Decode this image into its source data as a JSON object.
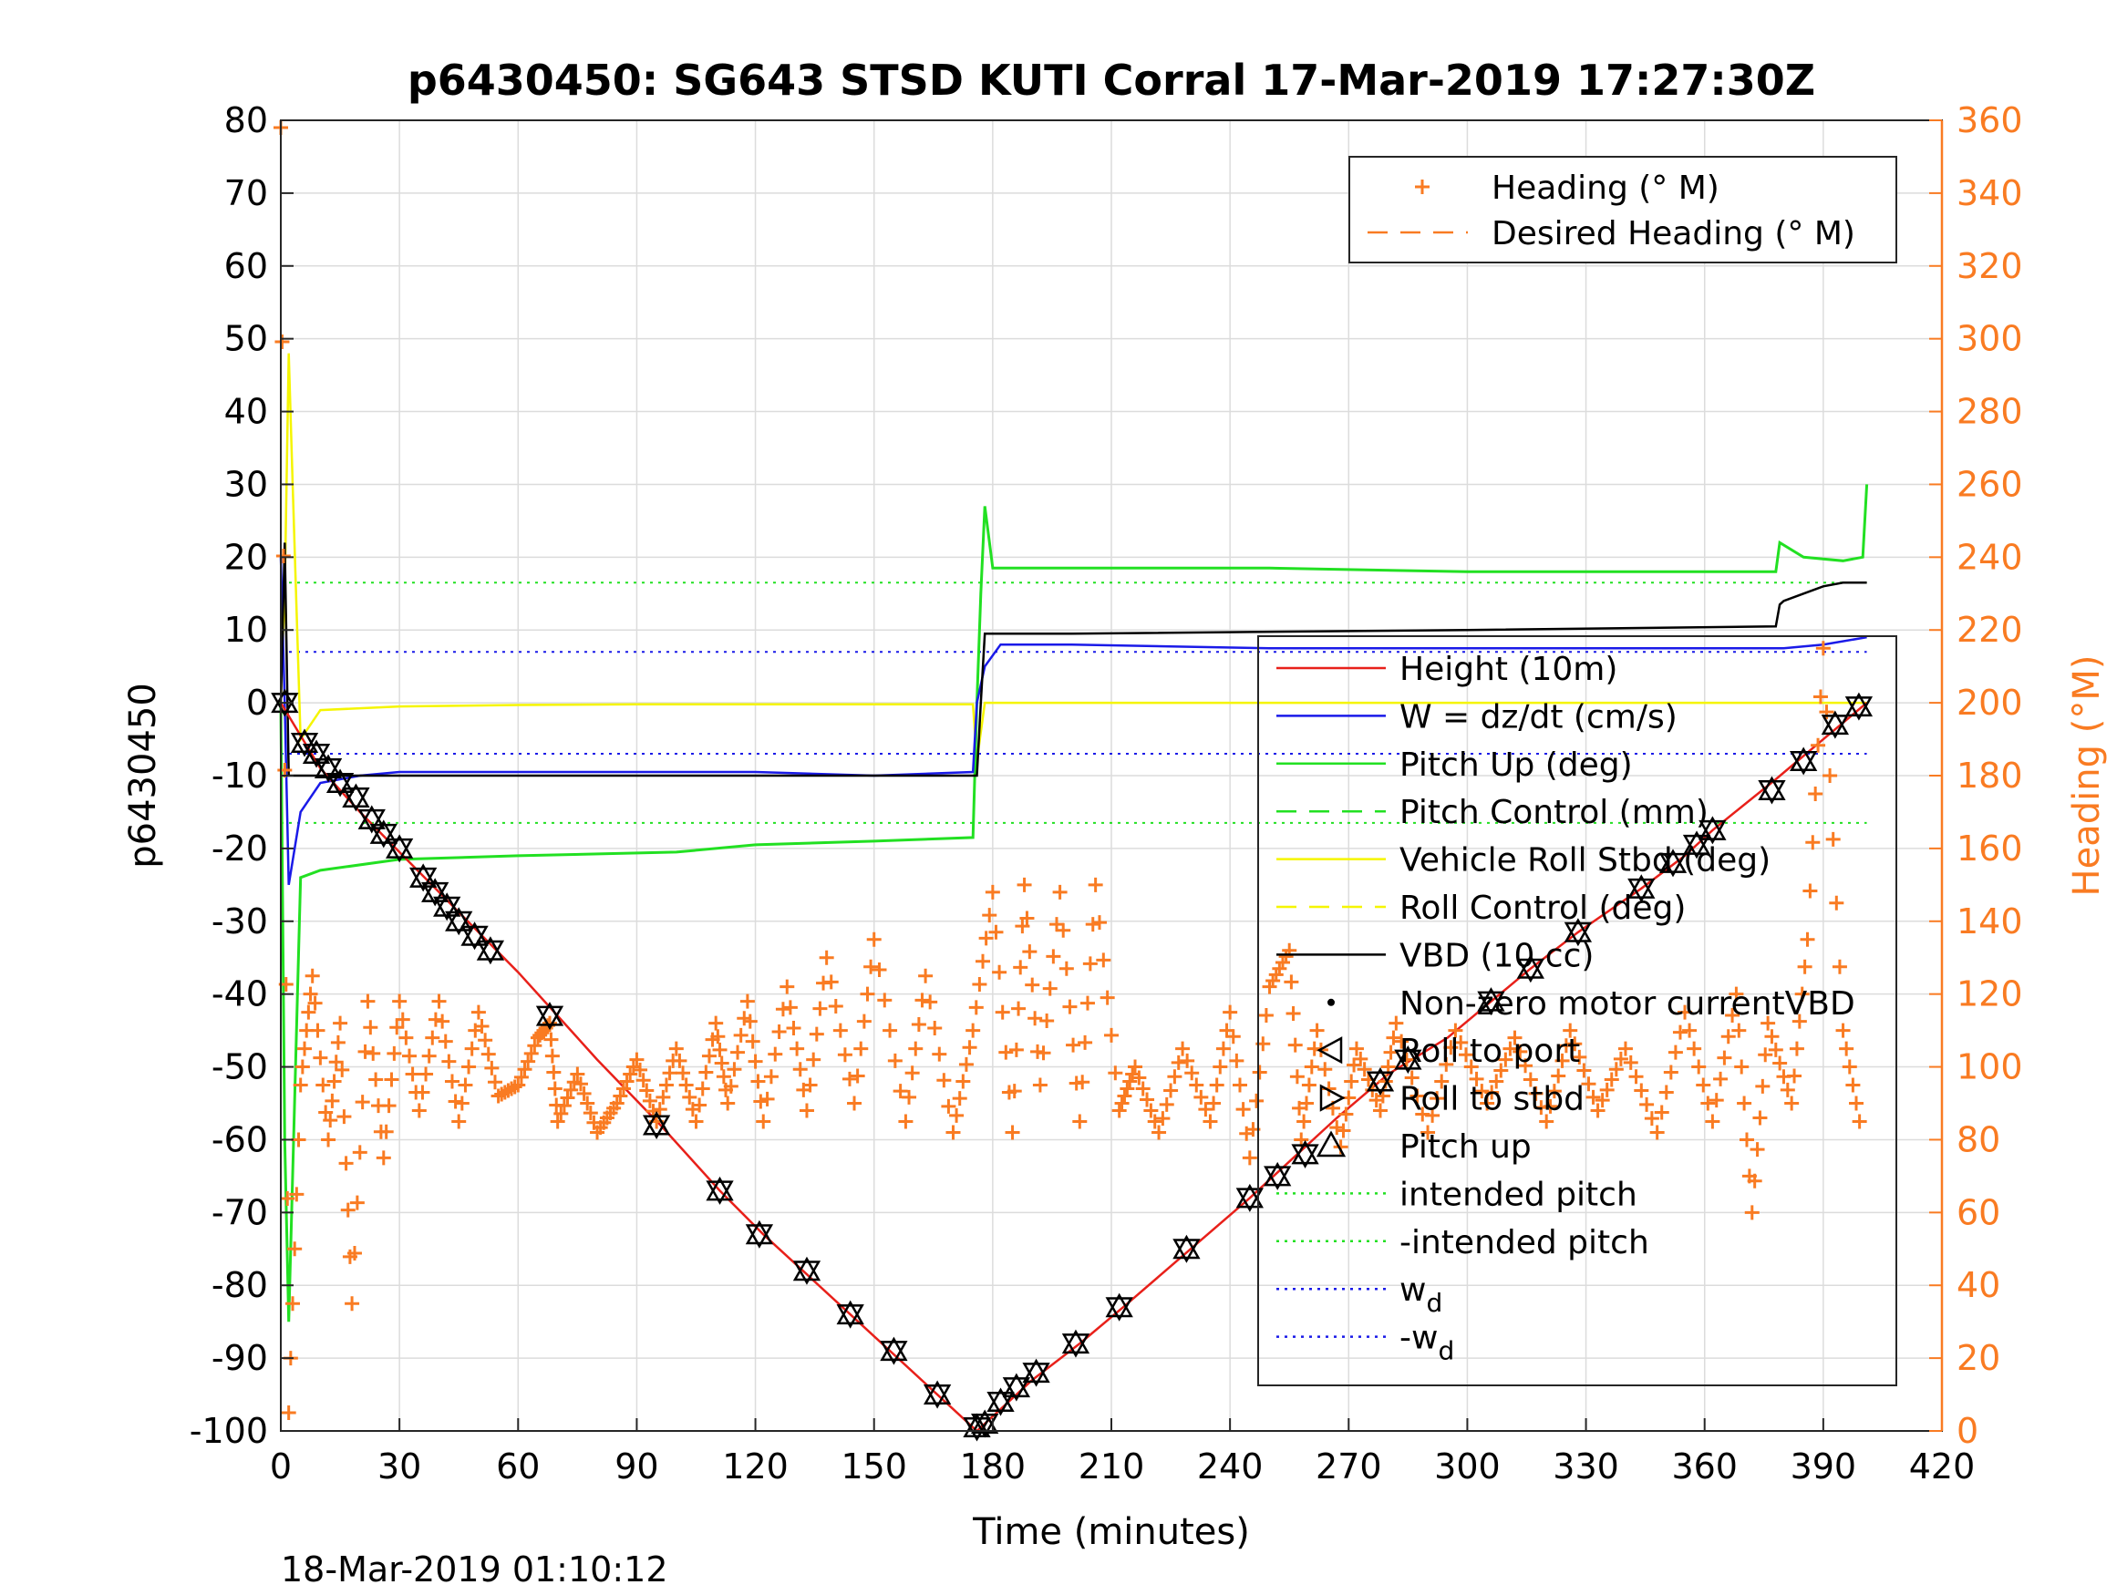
{
  "chart_data": {
    "type": "line",
    "title": "p6430450: SG643 STSD KUTI Corral 17-Mar-2019 17:27:30Z",
    "xlabel": "Time (minutes)",
    "ylabel": "p6430450",
    "ylabel_right": "Heading (°M)",
    "footer": "18-Mar-2019 01:10:12",
    "xlim": [
      0,
      420
    ],
    "ylim": [
      -100,
      80
    ],
    "ylim_right": [
      0,
      360
    ],
    "x_ticks": [
      "0",
      "30",
      "60",
      "90",
      "120",
      "150",
      "180",
      "210",
      "240",
      "270",
      "300",
      "330",
      "360",
      "390",
      "420"
    ],
    "y_ticks": [
      "80",
      "70",
      "60",
      "50",
      "40",
      "30",
      "20",
      "10",
      "0",
      "-10",
      "-20",
      "-30",
      "-40",
      "-50",
      "-60",
      "-70",
      "-80",
      "-90",
      "-100"
    ],
    "y_ticks_right": [
      "360",
      "340",
      "320",
      "300",
      "280",
      "260",
      "240",
      "220",
      "200",
      "180",
      "160",
      "140",
      "120",
      "100",
      "80",
      "60",
      "40",
      "20",
      "0"
    ],
    "grid": true,
    "legend_top": {
      "placement": "top-right",
      "entries": [
        {
          "label": "Heading (° M)",
          "color": "#f97b22",
          "style": "plus-marker"
        },
        {
          "label": "Desired Heading (° M)",
          "color": "#f97b22",
          "style": "dashed"
        }
      ]
    },
    "legend_main": {
      "placement": "right",
      "entries": [
        {
          "label": "Height (10m)",
          "color": "#e8201a",
          "style": "solid"
        },
        {
          "label": "W = dz/dt (cm/s)",
          "color": "#1a1ae8",
          "style": "solid"
        },
        {
          "label": "Pitch Up (deg)",
          "color": "#22e022",
          "style": "solid"
        },
        {
          "label": "Pitch Control (mm)",
          "color": "#22e022",
          "style": "dashed"
        },
        {
          "label": "Vehicle Roll Stbd (deg)",
          "color": "#f5f500",
          "style": "solid"
        },
        {
          "label": "Roll Control (deg)",
          "color": "#f5f500",
          "style": "dashed"
        },
        {
          "label": "VBD (10 cc)",
          "color": "#000000",
          "style": "solid"
        },
        {
          "label": "Non-zero motor currentVBD",
          "color": "#000000",
          "style": "dot"
        },
        {
          "label": "Roll to port",
          "color": "#000000",
          "style": "tri-left"
        },
        {
          "label": "Roll to stbd",
          "color": "#000000",
          "style": "tri-right"
        },
        {
          "label": "Pitch up",
          "color": "#000000",
          "style": "tri-up"
        },
        {
          "label": "intended pitch",
          "color": "#22e022",
          "style": "dotted"
        },
        {
          "label": "-intended pitch",
          "color": "#22e022",
          "style": "dotted"
        },
        {
          "label": "w",
          "sub": "d",
          "color": "#1a1ae8",
          "style": "dotted"
        },
        {
          "label": "-w",
          "sub": "d",
          "color": "#1a1ae8",
          "style": "dotted"
        }
      ]
    },
    "reference_lines": [
      {
        "name": "intended pitch",
        "y": 16.5,
        "color": "#22e022"
      },
      {
        "name": "-intended pitch",
        "y": -16.5,
        "color": "#22e022"
      },
      {
        "name": "w_d",
        "y": 7,
        "color": "#1a1ae8"
      },
      {
        "name": "-w_d",
        "y": -7,
        "color": "#1a1ae8"
      }
    ],
    "series": [
      {
        "name": "Height (10m)",
        "color": "#e8201a",
        "x": [
          0,
          5,
          10,
          20,
          30,
          40,
          50,
          60,
          70,
          80,
          96,
          111,
          122,
          133,
          144,
          155,
          166,
          176,
          178,
          190,
          202,
          213,
          229,
          245,
          255,
          267,
          280,
          295,
          306,
          316,
          328,
          344,
          355,
          362,
          378,
          390,
          401
        ],
        "y": [
          0,
          -4.5,
          -9,
          -15,
          -20.5,
          -26,
          -31.5,
          -37,
          -43,
          -49,
          -58,
          -67,
          -73,
          -78.5,
          -84,
          -89.5,
          -95,
          -100,
          -99,
          -93,
          -88,
          -83,
          -75.5,
          -68,
          -63,
          -57,
          -51,
          -46,
          -41,
          -36.5,
          -31.5,
          -25.5,
          -21,
          -17.5,
          -10.5,
          -5,
          0
        ]
      },
      {
        "name": "W = dz/dt (cm/s)",
        "color": "#1a1ae8",
        "x": [
          0,
          1,
          2,
          5,
          10,
          20,
          30,
          60,
          90,
          120,
          150,
          175,
          176,
          178,
          182,
          200,
          250,
          300,
          350,
          380,
          390,
          401
        ],
        "y": [
          20,
          0,
          -25,
          -15,
          -11,
          -10,
          -9.5,
          -9.5,
          -9.5,
          -9.5,
          -10,
          -9.5,
          0,
          5,
          8,
          8,
          7.5,
          7.5,
          7.5,
          7.5,
          8,
          9
        ]
      },
      {
        "name": "Pitch Up (deg)",
        "color": "#22e022",
        "x": [
          0,
          1,
          2,
          5,
          10,
          30,
          60,
          100,
          120,
          150,
          175,
          176,
          177,
          178,
          180,
          200,
          250,
          300,
          350,
          378,
          379,
          385,
          395,
          400,
          401
        ],
        "y": [
          0,
          -60,
          -85,
          -24,
          -23,
          -21.5,
          -21,
          -20.5,
          -19.5,
          -19,
          -18.5,
          0,
          15,
          27,
          18.5,
          18.5,
          18.5,
          18,
          18,
          18,
          22,
          20,
          19.5,
          20,
          30
        ]
      },
      {
        "name": "Vehicle Roll Stbd (deg)",
        "color": "#f5f500",
        "x": [
          0,
          1,
          2,
          3,
          5,
          10,
          30,
          60,
          90,
          120,
          150,
          175,
          176,
          178,
          180,
          200,
          250,
          300,
          350,
          401
        ],
        "y": [
          0,
          15,
          48,
          30,
          -5,
          -1,
          -0.5,
          -0.3,
          -0.2,
          -0.2,
          -0.2,
          -0.2,
          -8,
          0,
          0,
          0,
          0,
          0,
          0,
          0
        ]
      },
      {
        "name": "VBD (10 cc)",
        "color": "#000000",
        "x": [
          0,
          1,
          2,
          3,
          10,
          60,
          120,
          176,
          177,
          178,
          200,
          300,
          378,
          379,
          380,
          385,
          390,
          395,
          401
        ],
        "y": [
          0,
          22,
          -10,
          -10,
          -10,
          -10,
          -10,
          -10,
          0,
          9.5,
          9.5,
          10,
          10.5,
          13.5,
          14,
          15,
          16,
          16.5,
          16.5
        ]
      },
      {
        "name": "Heading (° M)",
        "color": "#f97b22",
        "axis": "right",
        "x": [
          0,
          2,
          5,
          8,
          12,
          15,
          18,
          22,
          26,
          30,
          35,
          40,
          45,
          50,
          55,
          60,
          65,
          68,
          70,
          75,
          80,
          85,
          90,
          95,
          100,
          105,
          110,
          113,
          118,
          122,
          128,
          133,
          138,
          145,
          150,
          158,
          163,
          170,
          175,
          180,
          185,
          188,
          192,
          197,
          202,
          206,
          212,
          216,
          222,
          228,
          235,
          240,
          245,
          250,
          255,
          258,
          262,
          268,
          272,
          278,
          282,
          290,
          297,
          305,
          312,
          320,
          326,
          333,
          340,
          348,
          355,
          362,
          368,
          372,
          376,
          382,
          386,
          390,
          395,
          400
        ],
        "y": [
          358,
          5,
          95,
          125,
          80,
          112,
          35,
          118,
          75,
          118,
          88,
          118,
          85,
          115,
          92,
          95,
          108,
          112,
          85,
          98,
          82,
          90,
          102,
          85,
          105,
          85,
          112,
          90,
          118,
          85,
          122,
          88,
          130,
          90,
          135,
          85,
          125,
          82,
          110,
          148,
          82,
          150,
          95,
          148,
          85,
          150,
          88,
          100,
          82,
          105,
          85,
          115,
          75,
          122,
          132,
          80,
          110,
          78,
          105,
          88,
          112,
          82,
          110,
          90,
          108,
          85,
          110,
          88,
          105,
          82,
          115,
          85,
          120,
          60,
          112,
          90,
          135,
          215,
          110,
          80
        ]
      }
    ],
    "markers": {
      "label": "Pitch up / Roll markers",
      "x": [
        1,
        6,
        9,
        12,
        15,
        19,
        23,
        26,
        30,
        36,
        39,
        42,
        45,
        49,
        53,
        68,
        95,
        111,
        121,
        133,
        144,
        155,
        166,
        176,
        178,
        182,
        186,
        191,
        201,
        212,
        229,
        245,
        252,
        259,
        278,
        285,
        306,
        316,
        328,
        344,
        352,
        358,
        362,
        377,
        385,
        393,
        399
      ],
      "y": [
        0,
        -5.5,
        -7,
        -9,
        -11,
        -13,
        -16,
        -18,
        -20,
        -24,
        -26,
        -28,
        -30,
        -32,
        -34,
        -43,
        -58,
        -67,
        -73,
        -78,
        -84,
        -89,
        -95,
        -99.5,
        -99,
        -96,
        -94,
        -92,
        -88,
        -83,
        -75,
        -68,
        -65,
        -62,
        -52,
        -49,
        -41,
        -36.5,
        -31.5,
        -25.5,
        -22,
        -19.5,
        -17.5,
        -12,
        -8,
        -3,
        -0.5
      ]
    }
  }
}
